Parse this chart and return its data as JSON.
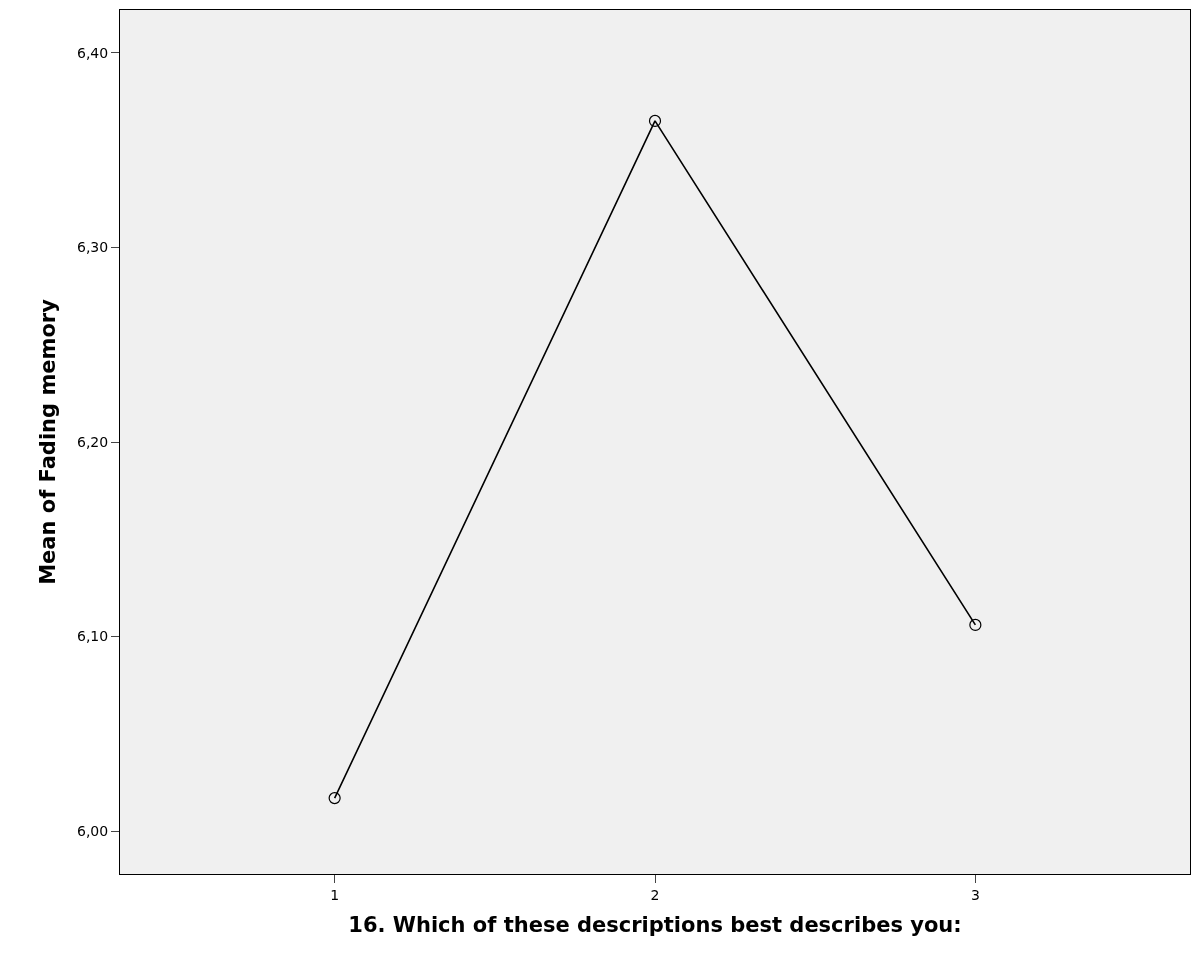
{
  "chart_data": {
    "type": "line",
    "xlabel": "16. Which of these descriptions best describes you:",
    "ylabel": "Mean of Fading memory",
    "categories": [
      "1",
      "2",
      "3"
    ],
    "series": [
      {
        "color": "#000000",
        "values": [
          6.017,
          6.365,
          6.106
        ]
      }
    ],
    "ylim": [
      5.978,
      6.422
    ],
    "yticks": [
      {
        "value": 6.0,
        "label": "6,00"
      },
      {
        "value": 6.1,
        "label": "6,10"
      },
      {
        "value": 6.2,
        "label": "6,20"
      },
      {
        "value": 6.3,
        "label": "6,30"
      },
      {
        "value": 6.4,
        "label": "6,40"
      }
    ],
    "marker": "circle",
    "line_style": "solid"
  }
}
